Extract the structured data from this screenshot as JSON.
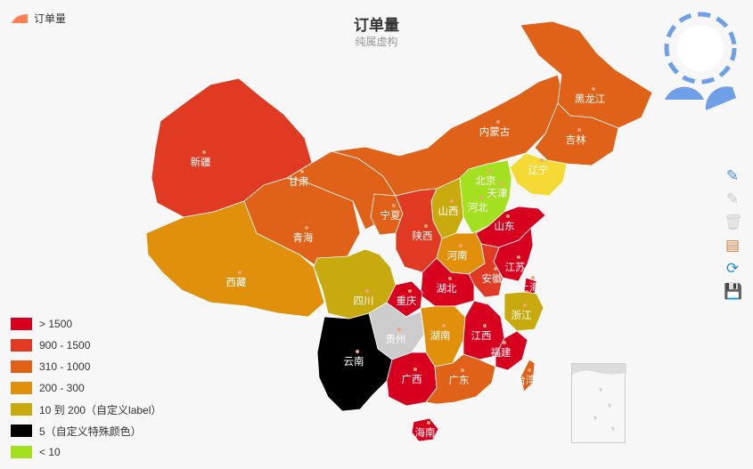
{
  "legend_top": {
    "label": "订单量",
    "color": "#ff7f50"
  },
  "title": "订单量",
  "subtitle": "纯属虚构",
  "range_legend": [
    {
      "label": "> 1500",
      "color": "#d7001f"
    },
    {
      "label": "900 - 1500",
      "color": "#e03a22"
    },
    {
      "label": "310 - 1000",
      "color": "#e06118"
    },
    {
      "label": "200 - 300",
      "color": "#e0900b"
    },
    {
      "label": "10 到 200（自定义label）",
      "color": "#c9aa0e"
    },
    {
      "label": "5（自定义特殊颜色）",
      "color": "#000000"
    },
    {
      "label": "< 10",
      "color": "#a3e020"
    }
  ],
  "provinces": [
    {
      "id": "xinjiang",
      "name": "新疆",
      "color": "#e03a22"
    },
    {
      "id": "xizang",
      "name": "西藏",
      "color": "#e0900b"
    },
    {
      "id": "qinghai",
      "name": "青海",
      "color": "#e06118"
    },
    {
      "id": "gansu",
      "name": "甘肃",
      "color": "#e06118"
    },
    {
      "id": "neimenggu",
      "name": "内蒙古",
      "color": "#e06118"
    },
    {
      "id": "heilongjiang",
      "name": "黑龙江",
      "color": "#e06118"
    },
    {
      "id": "jilin",
      "name": "吉林",
      "color": "#e06118"
    },
    {
      "id": "liaoning",
      "name": "辽宁",
      "color": "#f5d935"
    },
    {
      "id": "beijing",
      "name": "北京",
      "color": "#a3e020"
    },
    {
      "id": "tianjin",
      "name": "天津",
      "color": "#a3e020"
    },
    {
      "id": "hebei",
      "name": "河北",
      "color": "#a3e020"
    },
    {
      "id": "shanxi",
      "name": "山西",
      "color": "#c9aa0e"
    },
    {
      "id": "ningxia",
      "name": "宁夏",
      "color": "#e06118"
    },
    {
      "id": "shaanxi",
      "name": "陕西",
      "color": "#e03a22"
    },
    {
      "id": "shandong",
      "name": "山东",
      "color": "#d7001f"
    },
    {
      "id": "henan",
      "name": "河南",
      "color": "#e0900b"
    },
    {
      "id": "jiangsu",
      "name": "江苏",
      "color": "#d7001f"
    },
    {
      "id": "anhui",
      "name": "安徽",
      "color": "#e03a22"
    },
    {
      "id": "shanghai",
      "name": "上海",
      "color": "#d7001f"
    },
    {
      "id": "zhejiang",
      "name": "浙江",
      "color": "#c9aa0e"
    },
    {
      "id": "hubei",
      "name": "湖北",
      "color": "#d7001f"
    },
    {
      "id": "sichuan",
      "name": "四川",
      "color": "#c9aa0e"
    },
    {
      "id": "chongqing",
      "name": "重庆",
      "color": "#d7001f"
    },
    {
      "id": "guizhou",
      "name": "贵州",
      "color": "#cccccc"
    },
    {
      "id": "hunan",
      "name": "湖南",
      "color": "#e0900b"
    },
    {
      "id": "jiangxi",
      "name": "江西",
      "color": "#d7001f"
    },
    {
      "id": "fujian",
      "name": "福建",
      "color": "#d7001f"
    },
    {
      "id": "yunnan",
      "name": "云南",
      "color": "#000000"
    },
    {
      "id": "guangxi",
      "name": "广西",
      "color": "#d7001f"
    },
    {
      "id": "guangdong",
      "name": "广东",
      "color": "#e06118"
    },
    {
      "id": "taiwan",
      "name": "台湾",
      "color": "#e06118"
    },
    {
      "id": "hainan",
      "name": "海南",
      "color": "#d7001f"
    }
  ],
  "toolbox": [
    {
      "icon": "zoom-in-icon",
      "glyph": "✎",
      "color": "#4a90d9"
    },
    {
      "icon": "zoom-out-icon",
      "glyph": "✎",
      "color": "#c8c8c8"
    },
    {
      "icon": "restore-trash-icon",
      "glyph": "🗑",
      "color": "#d0d0d0"
    },
    {
      "icon": "data-view-icon",
      "glyph": "▤",
      "color": "#e07b39"
    },
    {
      "icon": "refresh-icon",
      "glyph": "⟳",
      "color": "#2a8fd0"
    },
    {
      "icon": "save-icon",
      "glyph": "💾",
      "color": "#4caf50"
    }
  ]
}
